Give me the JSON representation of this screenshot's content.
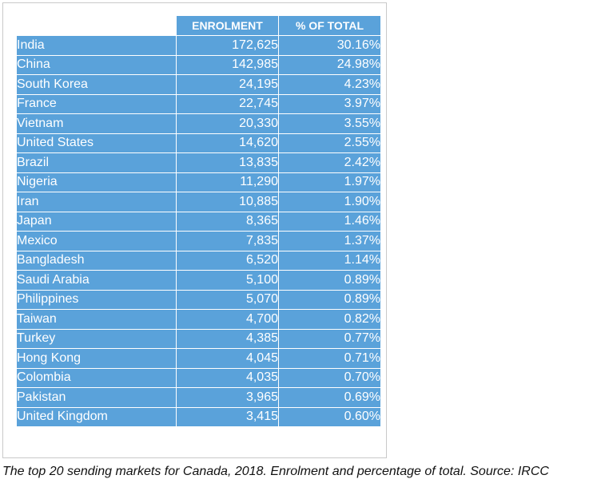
{
  "table": {
    "headers": [
      "",
      "ENROLMENT",
      "% OF TOTAL"
    ],
    "rows": [
      [
        "India",
        "172,625",
        "30.16%"
      ],
      [
        "China",
        "142,985",
        "24.98%"
      ],
      [
        "South Korea",
        "24,195",
        "4.23%"
      ],
      [
        "France",
        "22,745",
        "3.97%"
      ],
      [
        "Vietnam",
        "20,330",
        "3.55%"
      ],
      [
        "United States",
        "14,620",
        "2.55%"
      ],
      [
        "Brazil",
        "13,835",
        "2.42%"
      ],
      [
        "Nigeria",
        "11,290",
        "1.97%"
      ],
      [
        "Iran",
        "10,885",
        "1.90%"
      ],
      [
        "Japan",
        "8,365",
        "1.46%"
      ],
      [
        "Mexico",
        "7,835",
        "1.37%"
      ],
      [
        "Bangladesh",
        "6,520",
        "1.14%"
      ],
      [
        "Saudi Arabia",
        "5,100",
        "0.89%"
      ],
      [
        "Philippines",
        "5,070",
        "0.89%"
      ],
      [
        "Taiwan",
        "4,700",
        "0.82%"
      ],
      [
        "Turkey",
        "4,385",
        "0.77%"
      ],
      [
        "Hong Kong",
        "4,045",
        "0.71%"
      ],
      [
        "Colombia",
        "4,035",
        "0.70%"
      ],
      [
        "Pakistan",
        "3,965",
        "0.69%"
      ],
      [
        "United Kingdom",
        "3,415",
        "0.60%"
      ]
    ]
  },
  "caption": "The top 20 sending markets for Canada, 2018. Enrolment and percentage of total. Source: IRCC",
  "colors": {
    "cell_fill": "#5aa2da",
    "cell_text": "#ffffff",
    "grid": "#ffffff"
  }
}
